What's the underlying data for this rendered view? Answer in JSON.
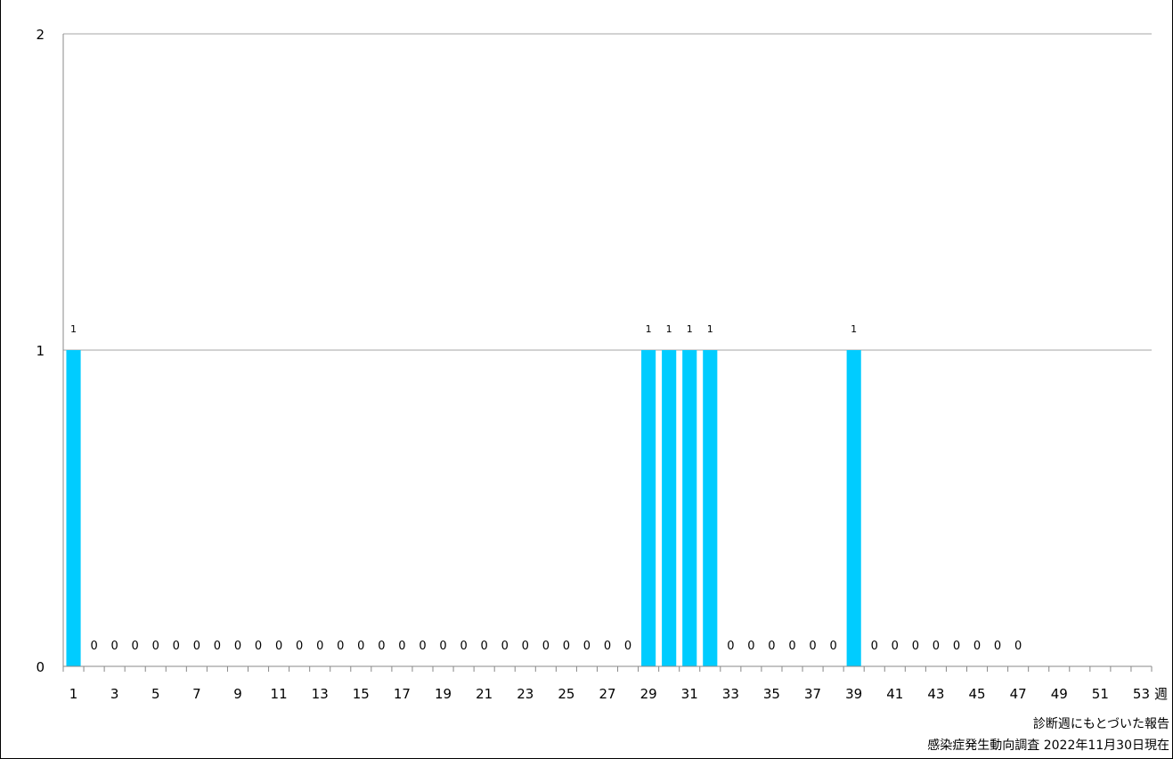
{
  "chart_data": {
    "type": "bar",
    "x_unit": "週",
    "x_tick_labels": [
      "1",
      "3",
      "5",
      "7",
      "9",
      "11",
      "13",
      "15",
      "17",
      "19",
      "21",
      "23",
      "25",
      "27",
      "29",
      "31",
      "33",
      "35",
      "37",
      "39",
      "41",
      "43",
      "45",
      "47",
      "49",
      "51",
      "53"
    ],
    "weeks": [
      1,
      2,
      3,
      4,
      5,
      6,
      7,
      8,
      9,
      10,
      11,
      12,
      13,
      14,
      15,
      16,
      17,
      18,
      19,
      20,
      21,
      22,
      23,
      24,
      25,
      26,
      27,
      28,
      29,
      30,
      31,
      32,
      33,
      34,
      35,
      36,
      37,
      38,
      39,
      40,
      41,
      42,
      43,
      44,
      45,
      46,
      47
    ],
    "values": [
      1,
      0,
      0,
      0,
      0,
      0,
      0,
      0,
      0,
      0,
      0,
      0,
      0,
      0,
      0,
      0,
      0,
      0,
      0,
      0,
      0,
      0,
      0,
      0,
      0,
      0,
      0,
      0,
      1,
      1,
      1,
      1,
      0,
      0,
      0,
      0,
      0,
      0,
      1,
      0,
      0,
      0,
      0,
      0,
      0,
      0,
      0
    ],
    "ylim": [
      0,
      2
    ],
    "y_ticks": [
      0,
      1,
      2
    ],
    "grid": true,
    "bar_color": "#00CCFF",
    "title": "",
    "xlabel": "",
    "ylabel": ""
  },
  "notes": {
    "line1": "診断週にもとづいた報告",
    "line2": "感染症発生動向調査 2022年11月30日現在"
  }
}
